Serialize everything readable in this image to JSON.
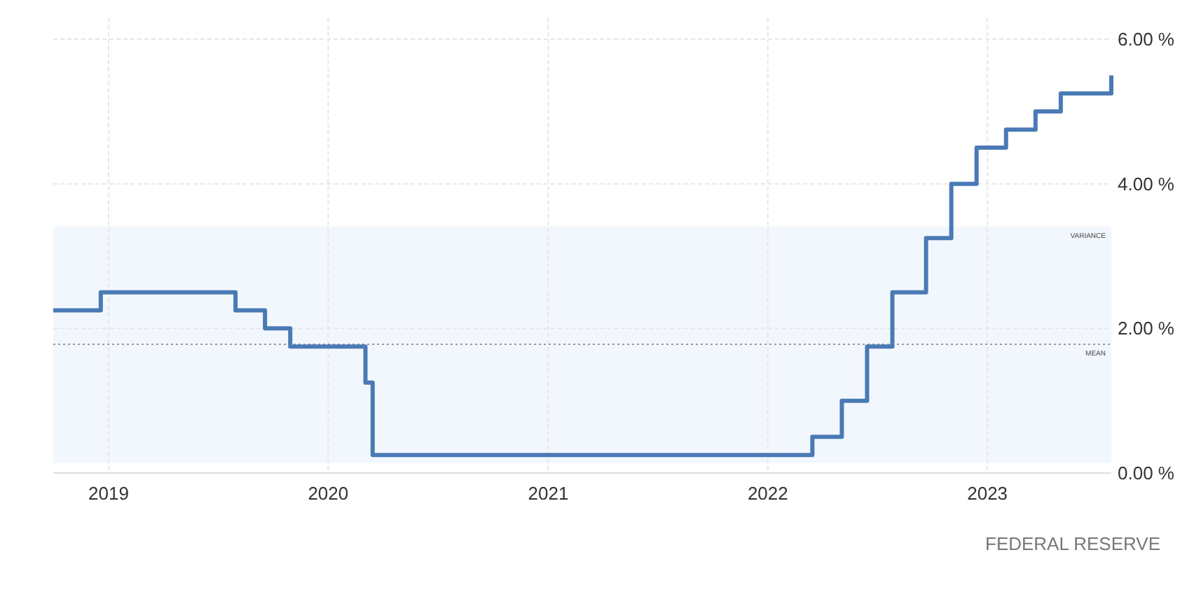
{
  "chart_data": {
    "type": "step",
    "x": [
      "2018-10-01",
      "2018-12-19",
      "2019-07-31",
      "2019-09-18",
      "2019-10-30",
      "2020-03-03",
      "2020-03-15",
      "2022-03-16",
      "2022-05-04",
      "2022-06-15",
      "2022-07-27",
      "2022-09-21",
      "2022-11-02",
      "2022-12-14",
      "2023-02-01",
      "2023-03-22",
      "2023-05-03",
      "2023-07-26"
    ],
    "series": [
      {
        "color": "#4a7ab5",
        "values": [
          2.25,
          2.5,
          2.25,
          2.0,
          1.75,
          1.25,
          0.25,
          0.5,
          1.0,
          1.75,
          2.5,
          3.25,
          4.0,
          4.5,
          4.75,
          5.0,
          5.25,
          5.5
        ]
      }
    ],
    "xlim": [
      "2018-10-01",
      "2023-07-26"
    ],
    "xticks": [
      {
        "value": "2019",
        "label": "2019"
      },
      {
        "value": "2020",
        "label": "2020"
      },
      {
        "value": "2021",
        "label": "2021"
      },
      {
        "value": "2022",
        "label": "2022"
      },
      {
        "value": "2023",
        "label": "2023"
      }
    ],
    "ylim": [
      0,
      6
    ],
    "yticks": [
      {
        "value": 0,
        "label": "0.00 %"
      },
      {
        "value": 2,
        "label": "2.00 %"
      },
      {
        "value": 4,
        "label": "4.00 %"
      },
      {
        "value": 6,
        "label": "6.00 %"
      }
    ],
    "grid": true,
    "bands": [
      {
        "axis": "y",
        "from": 0.14,
        "to": 3.41,
        "label": "VARIANCE",
        "color": "#f2f7fd"
      }
    ],
    "ref_lines": [
      {
        "axis": "y",
        "value": 1.78,
        "label": "MEAN",
        "color": "#999999",
        "line_style": "dotted"
      }
    ],
    "annotations": [
      "FEDERAL RESERVE"
    ]
  }
}
